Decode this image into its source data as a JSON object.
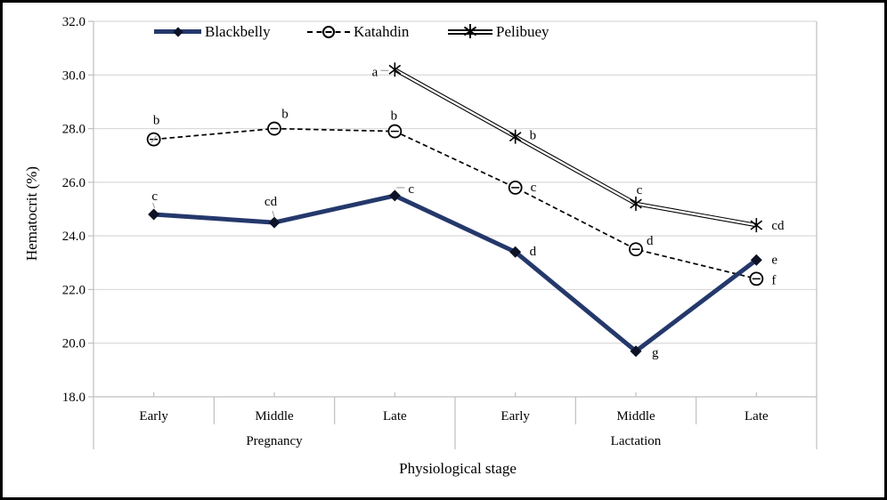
{
  "figure": {
    "background": "#ffffff",
    "border_color": "#000000"
  },
  "chart_data": {
    "type": "line",
    "title": "",
    "xlabel": "Physiological stage",
    "ylabel": "Hematocrit (%)",
    "ylim": [
      18.0,
      32.0
    ],
    "ytick_step": 2.0,
    "ytick_labels": [
      "18.0",
      "20.0",
      "22.0",
      "24.0",
      "26.0",
      "28.0",
      "30.0",
      "32.0"
    ],
    "grid": true,
    "legend_position": "top-center-inside",
    "categories": [
      "Early",
      "Middle",
      "Late",
      "Early",
      "Middle",
      "Late"
    ],
    "category_groups": [
      {
        "label": "Pregnancy",
        "span": [
          0,
          2
        ]
      },
      {
        "label": "Lactation",
        "span": [
          3,
          5
        ]
      }
    ],
    "series": [
      {
        "name": "Blackbelly",
        "marker": "diamond",
        "line_style": "solid-thick",
        "color": "#24386B",
        "values": [
          24.8,
          24.5,
          25.5,
          23.4,
          19.7,
          23.1
        ],
        "point_labels": [
          "c",
          "cd",
          "c",
          "d",
          "g",
          "e"
        ]
      },
      {
        "name": "Katahdin",
        "marker": "open-circle",
        "line_style": "dashed",
        "color": "#000000",
        "values": [
          27.6,
          28.0,
          27.9,
          25.8,
          23.5,
          22.4
        ],
        "point_labels": [
          "b",
          "b",
          "b",
          "c",
          "d",
          "f"
        ]
      },
      {
        "name": "Pelibuey",
        "marker": "asterisk",
        "line_style": "double",
        "color": "#000000",
        "values": [
          null,
          null,
          30.2,
          27.7,
          25.2,
          24.4
        ],
        "point_labels": [
          null,
          null,
          "a",
          "b",
          "c",
          "cd"
        ]
      }
    ]
  },
  "colors": {
    "gridline": "#D9D9D9",
    "axis_line": "#BFBFBF",
    "leader_line": "#A6A6A6",
    "text": "#000000",
    "blackbelly_navy": "#24386B",
    "marker_black": "#0d1326",
    "white": "#ffffff"
  }
}
